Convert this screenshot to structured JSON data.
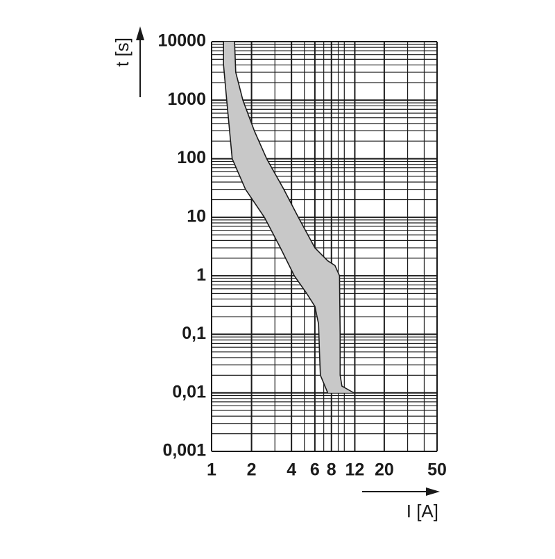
{
  "chart_data": {
    "type": "band",
    "y_label": "t [s]",
    "x_label": "I [A]",
    "log_x": true,
    "log_y": true,
    "grid": true,
    "xlim": [
      1,
      50
    ],
    "xticks": [
      1,
      2,
      4,
      6,
      8,
      12,
      20,
      50
    ],
    "ylim": [
      0.001,
      10000
    ],
    "yticks": [
      10000,
      1000,
      100,
      10,
      1,
      {
        "value": 0.1,
        "label": "0,1"
      },
      {
        "value": 0.01,
        "label": "0,01"
      },
      {
        "value": 0.001,
        "label": "0,001"
      }
    ],
    "band_color": "#c8c8c8",
    "series": [
      {
        "color": "#1a1a1a",
        "x": [
          1.23,
          1.23,
          1.3,
          1.43,
          1.8,
          2.5,
          3.3,
          4.2,
          5.2,
          6.0,
          6.4,
          6.5,
          6.6,
          7.5
        ],
        "values": [
          10000,
          4000,
          1000,
          100,
          30,
          10,
          3,
          1,
          0.5,
          0.3,
          0.15,
          0.05,
          0.02,
          0.01
        ]
      },
      {
        "color": "#1a1a1a",
        "x": [
          1.49,
          1.52,
          1.72,
          2.1,
          2.6,
          3.5,
          4.5,
          6.0,
          7.5,
          8.5,
          9.2,
          9.3,
          9.3,
          9.6,
          11.8
        ],
        "values": [
          10000,
          3000,
          1000,
          300,
          100,
          30,
          10,
          3,
          1.8,
          1.5,
          1,
          0.1,
          0.02,
          0.013,
          0.01
        ]
      }
    ]
  }
}
